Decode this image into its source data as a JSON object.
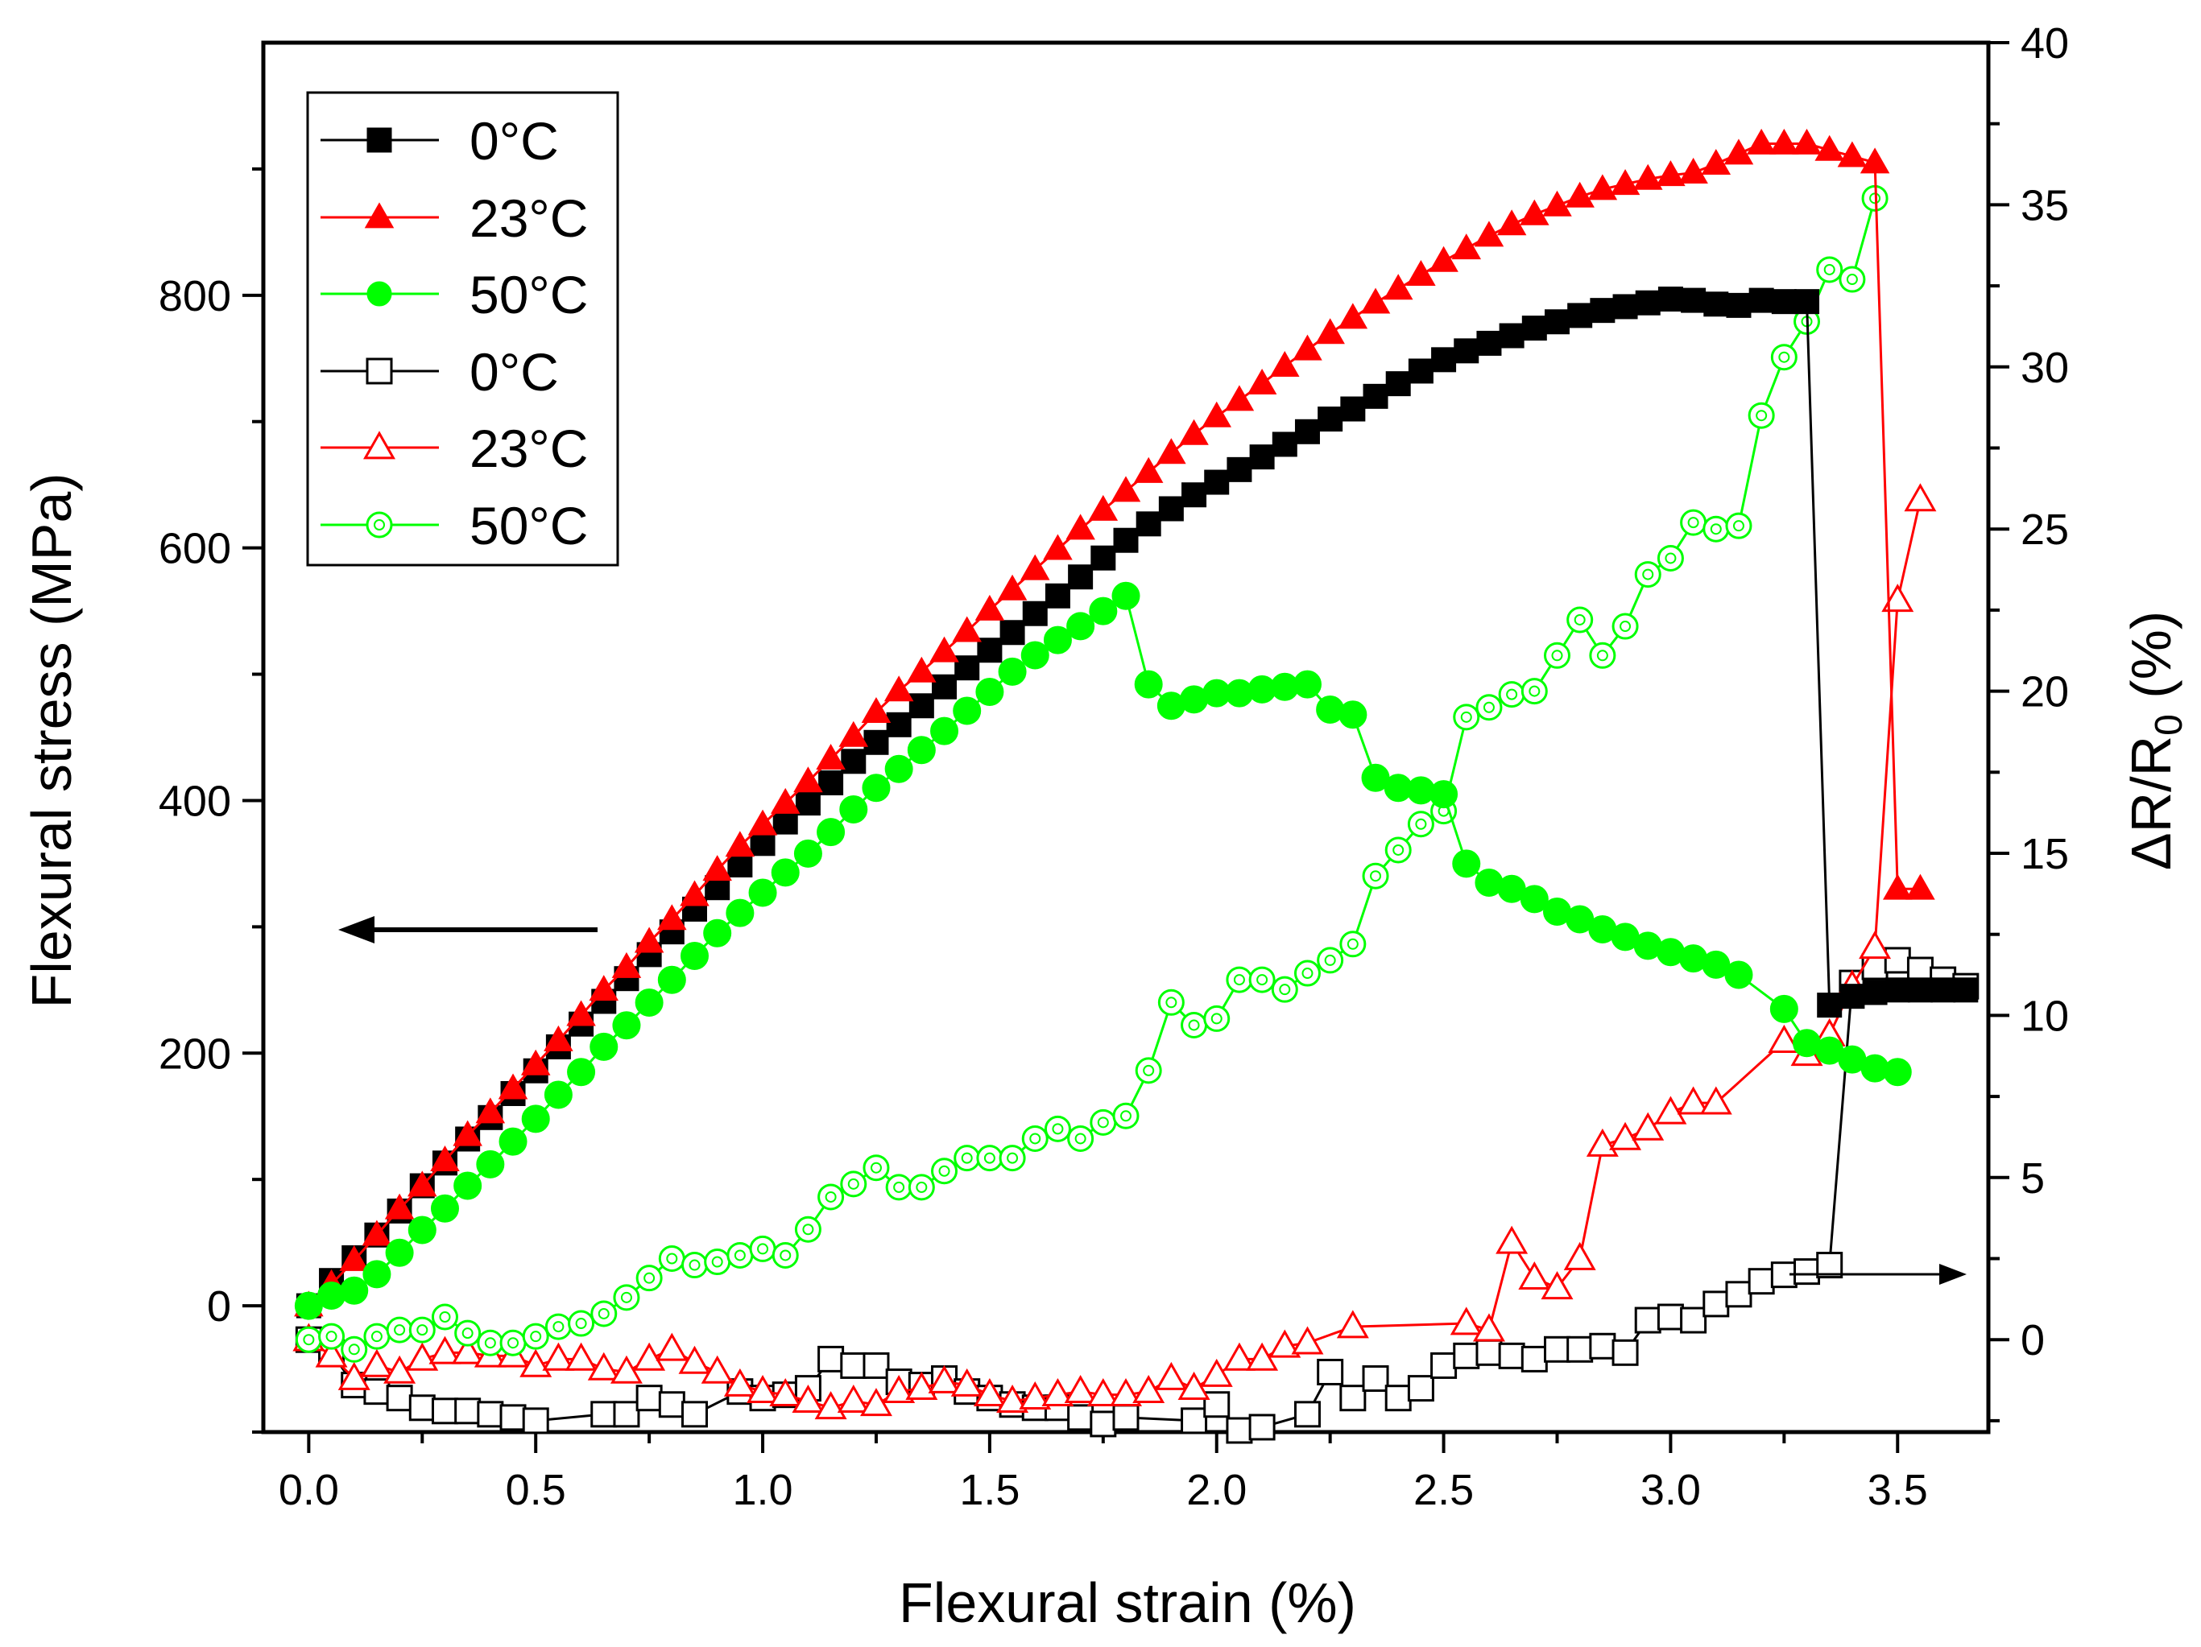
{
  "chart_data": {
    "type": "line",
    "xlabel": "Flexural strain (%)",
    "ylabel": "Flexural stress (MPa)",
    "y2label_main": "ΔR/R",
    "y2label_sub": "0",
    "y2label_end": " (%)",
    "xlim": [
      -0.1,
      3.7
    ],
    "ylim": [
      -100,
      1000
    ],
    "y2lim": [
      -2.85,
      40
    ],
    "x_ticks": [
      0.0,
      0.5,
      1.0,
      1.5,
      2.0,
      2.5,
      3.0,
      3.5
    ],
    "x_tick_labels": [
      "0.0",
      "0.5",
      "1.0",
      "1.5",
      "2.0",
      "2.5",
      "3.0",
      "3.5"
    ],
    "y_ticks": [
      0,
      200,
      400,
      600,
      800
    ],
    "y_tick_labels": [
      "0",
      "200",
      "400",
      "600",
      "800"
    ],
    "y2_ticks": [
      0,
      5,
      10,
      15,
      20,
      25,
      30,
      35,
      40
    ],
    "y2_tick_labels": [
      "0",
      "5",
      "10",
      "15",
      "20",
      "25",
      "30",
      "35",
      "40"
    ],
    "legend_position": "top-left",
    "series": [
      {
        "name": "0°C",
        "axis": "left",
        "marker": "square",
        "filled": true,
        "color": "#000000",
        "x": [
          0.0,
          0.05,
          0.1,
          0.15,
          0.2,
          0.25,
          0.3,
          0.35,
          0.4,
          0.45,
          0.5,
          0.55,
          0.6,
          0.65,
          0.7,
          0.75,
          0.8,
          0.85,
          0.9,
          0.95,
          1.0,
          1.05,
          1.1,
          1.15,
          1.2,
          1.25,
          1.3,
          1.35,
          1.4,
          1.45,
          1.5,
          1.55,
          1.6,
          1.65,
          1.7,
          1.75,
          1.8,
          1.85,
          1.9,
          1.95,
          2.0,
          2.05,
          2.1,
          2.15,
          2.2,
          2.25,
          2.3,
          2.35,
          2.4,
          2.45,
          2.5,
          2.55,
          2.6,
          2.65,
          2.7,
          2.75,
          2.8,
          2.85,
          2.9,
          2.95,
          3.0,
          3.05,
          3.1,
          3.15,
          3.2,
          3.25,
          3.3,
          3.35,
          3.4,
          3.45,
          3.5,
          3.55,
          3.6,
          3.65
        ],
        "y": [
          0,
          20,
          38,
          56,
          75,
          95,
          113,
          132,
          149,
          168,
          186,
          205,
          223,
          241,
          259,
          278,
          296,
          314,
          331,
          349,
          366,
          383,
          398,
          414,
          431,
          446,
          460,
          475,
          490,
          505,
          519,
          533,
          548,
          562,
          577,
          592,
          606,
          619,
          631,
          642,
          652,
          662,
          672,
          682,
          692,
          702,
          710,
          720,
          730,
          740,
          749,
          756,
          762,
          768,
          774,
          779,
          784,
          788,
          791,
          794,
          797,
          796,
          793,
          792,
          796,
          795,
          795,
          238,
          245,
          248,
          250,
          250,
          250,
          250
        ]
      },
      {
        "name": "23°C",
        "axis": "left",
        "marker": "triangle",
        "filled": true,
        "color": "#ff0000",
        "x": [
          0.0,
          0.05,
          0.1,
          0.15,
          0.2,
          0.25,
          0.3,
          0.35,
          0.4,
          0.45,
          0.5,
          0.55,
          0.6,
          0.65,
          0.7,
          0.75,
          0.8,
          0.85,
          0.9,
          0.95,
          1.0,
          1.05,
          1.1,
          1.15,
          1.2,
          1.25,
          1.3,
          1.35,
          1.4,
          1.45,
          1.5,
          1.55,
          1.6,
          1.65,
          1.7,
          1.75,
          1.8,
          1.85,
          1.9,
          1.95,
          2.0,
          2.05,
          2.1,
          2.15,
          2.2,
          2.25,
          2.3,
          2.35,
          2.4,
          2.45,
          2.5,
          2.55,
          2.6,
          2.65,
          2.7,
          2.75,
          2.8,
          2.85,
          2.9,
          2.95,
          3.0,
          3.05,
          3.1,
          3.15,
          3.2,
          3.25,
          3.3,
          3.35,
          3.4,
          3.45,
          3.5,
          3.55
        ],
        "y": [
          0,
          17,
          36,
          56,
          77,
          95,
          115,
          135,
          153,
          172,
          191,
          210,
          230,
          250,
          268,
          288,
          306,
          325,
          345,
          364,
          381,
          398,
          415,
          433,
          451,
          470,
          487,
          502,
          518,
          534,
          551,
          567,
          583,
          599,
          615,
          630,
          645,
          660,
          675,
          690,
          704,
          717,
          730,
          744,
          757,
          770,
          782,
          794,
          805,
          816,
          827,
          837,
          847,
          856,
          864,
          871,
          878,
          884,
          888,
          892,
          895,
          897,
          904,
          912,
          920,
          920,
          920,
          915,
          910,
          905,
          330,
          330
        ]
      },
      {
        "name": "50°C",
        "axis": "left",
        "marker": "circle",
        "filled": true,
        "color": "#00ff00",
        "x": [
          0.0,
          0.05,
          0.1,
          0.15,
          0.2,
          0.25,
          0.3,
          0.35,
          0.4,
          0.45,
          0.5,
          0.55,
          0.6,
          0.65,
          0.7,
          0.75,
          0.8,
          0.85,
          0.9,
          0.95,
          1.0,
          1.05,
          1.1,
          1.15,
          1.2,
          1.25,
          1.3,
          1.35,
          1.4,
          1.45,
          1.5,
          1.55,
          1.6,
          1.65,
          1.7,
          1.75,
          1.8,
          1.85,
          1.9,
          1.95,
          2.0,
          2.05,
          2.1,
          2.15,
          2.2,
          2.25,
          2.3,
          2.35,
          2.4,
          2.45,
          2.5,
          2.55,
          2.6,
          2.65,
          2.7,
          2.75,
          2.8,
          2.85,
          2.9,
          2.95,
          3.0,
          3.05,
          3.1,
          3.15,
          3.25,
          3.3,
          3.35,
          3.4,
          3.45,
          3.5
        ],
        "y": [
          0,
          8,
          12,
          25,
          42,
          60,
          77,
          95,
          112,
          130,
          148,
          167,
          185,
          205,
          222,
          240,
          258,
          277,
          295,
          311,
          327,
          343,
          358,
          375,
          393,
          410,
          425,
          440,
          455,
          471,
          486,
          502,
          515,
          527,
          538,
          550,
          562,
          492,
          475,
          480,
          485,
          485,
          488,
          490,
          492,
          472,
          468,
          418,
          410,
          408,
          405,
          350,
          335,
          330,
          322,
          312,
          306,
          298,
          292,
          285,
          280,
          275,
          270,
          262,
          235,
          208,
          202,
          195,
          188,
          185
        ]
      },
      {
        "name": "0°C",
        "axis": "right",
        "marker": "square",
        "filled": false,
        "color": "#000000",
        "x": [
          0.0,
          0.05,
          0.1,
          0.15,
          0.2,
          0.25,
          0.3,
          0.35,
          0.4,
          0.45,
          0.5,
          0.65,
          0.7,
          0.75,
          0.8,
          0.85,
          0.95,
          1.0,
          1.05,
          1.1,
          1.15,
          1.2,
          1.25,
          1.3,
          1.35,
          1.4,
          1.45,
          1.5,
          1.55,
          1.6,
          1.65,
          1.7,
          1.75,
          1.8,
          1.95,
          2.0,
          2.05,
          2.1,
          2.2,
          2.25,
          2.3,
          2.35,
          2.4,
          2.45,
          2.5,
          2.55,
          2.6,
          2.65,
          2.7,
          2.75,
          2.8,
          2.85,
          2.9,
          2.95,
          3.0,
          3.05,
          3.1,
          3.15,
          3.2,
          3.25,
          3.3,
          3.35,
          3.4,
          3.45,
          3.5,
          3.55,
          3.6,
          3.65
        ],
        "y": [
          0.0,
          -0.4,
          -1.4,
          -1.6,
          -1.8,
          -2.1,
          -2.2,
          -2.2,
          -2.3,
          -2.4,
          -2.5,
          -2.3,
          -2.3,
          -1.8,
          -2.0,
          -2.3,
          -1.6,
          -1.8,
          -1.7,
          -1.5,
          -0.6,
          -0.8,
          -0.8,
          -1.3,
          -1.4,
          -1.2,
          -1.6,
          -1.8,
          -2.0,
          -2.1,
          -2.1,
          -2.4,
          -2.6,
          -2.4,
          -2.5,
          -2.0,
          -2.8,
          -2.7,
          -2.3,
          -1.0,
          -1.8,
          -1.2,
          -1.8,
          -1.5,
          -0.8,
          -0.5,
          -0.4,
          -0.5,
          -0.6,
          -0.3,
          -0.3,
          -0.2,
          -0.4,
          0.6,
          0.7,
          0.6,
          1.1,
          1.4,
          1.8,
          2.0,
          2.1,
          2.3,
          11.0,
          11.5,
          11.7,
          11.4,
          11.1,
          10.9
        ]
      },
      {
        "name": "23°C",
        "axis": "right",
        "marker": "triangle",
        "filled": false,
        "color": "#ff0000",
        "x": [
          0.0,
          0.05,
          0.1,
          0.15,
          0.2,
          0.25,
          0.3,
          0.35,
          0.4,
          0.45,
          0.5,
          0.55,
          0.6,
          0.65,
          0.7,
          0.75,
          0.8,
          0.85,
          0.9,
          0.95,
          1.0,
          1.05,
          1.1,
          1.15,
          1.2,
          1.25,
          1.3,
          1.35,
          1.4,
          1.45,
          1.5,
          1.55,
          1.6,
          1.65,
          1.7,
          1.75,
          1.8,
          1.85,
          1.9,
          1.95,
          2.0,
          2.05,
          2.1,
          2.15,
          2.2,
          2.3,
          2.55,
          2.6,
          2.65,
          2.7,
          2.75,
          2.8,
          2.85,
          2.9,
          2.95,
          3.0,
          3.05,
          3.1,
          3.25,
          3.3,
          3.35,
          3.4,
          3.45,
          3.5,
          3.55
        ],
        "y": [
          0.0,
          -0.5,
          -1.2,
          -0.8,
          -1.0,
          -0.6,
          -0.4,
          -0.4,
          -0.5,
          -0.5,
          -0.8,
          -0.6,
          -0.6,
          -0.9,
          -1.0,
          -0.6,
          -0.3,
          -0.7,
          -1.0,
          -1.4,
          -1.6,
          -1.7,
          -1.9,
          -2.1,
          -1.9,
          -2.0,
          -1.6,
          -1.5,
          -1.3,
          -1.4,
          -1.7,
          -1.9,
          -1.8,
          -1.7,
          -1.6,
          -1.7,
          -1.7,
          -1.6,
          -1.2,
          -1.5,
          -1.1,
          -0.6,
          -0.6,
          -0.2,
          -0.1,
          0.4,
          0.5,
          0.3,
          3.0,
          1.9,
          1.6,
          2.5,
          6.0,
          6.2,
          6.5,
          7.0,
          7.3,
          7.3,
          9.2,
          8.8,
          9.4,
          10.9,
          12.1,
          22.8,
          25.9
        ]
      },
      {
        "name": "50°C",
        "axis": "right",
        "marker": "circle",
        "filled": false,
        "color": "#00ff00",
        "x": [
          0.0,
          0.05,
          0.1,
          0.15,
          0.2,
          0.25,
          0.3,
          0.35,
          0.4,
          0.45,
          0.5,
          0.55,
          0.6,
          0.65,
          0.7,
          0.75,
          0.8,
          0.85,
          0.9,
          0.95,
          1.0,
          1.05,
          1.1,
          1.15,
          1.2,
          1.25,
          1.3,
          1.35,
          1.4,
          1.45,
          1.5,
          1.55,
          1.6,
          1.65,
          1.7,
          1.75,
          1.8,
          1.85,
          1.9,
          1.95,
          2.0,
          2.05,
          2.1,
          2.15,
          2.2,
          2.25,
          2.3,
          2.35,
          2.4,
          2.45,
          2.5,
          2.55,
          2.6,
          2.65,
          2.7,
          2.75,
          2.8,
          2.85,
          2.9,
          2.95,
          3.0,
          3.05,
          3.1,
          3.15,
          3.2,
          3.25,
          3.3,
          3.35,
          3.4,
          3.45
        ],
        "y": [
          0.0,
          0.1,
          -0.3,
          0.1,
          0.3,
          0.3,
          0.7,
          0.2,
          -0.1,
          -0.1,
          0.1,
          0.4,
          0.5,
          0.8,
          1.3,
          1.9,
          2.5,
          2.3,
          2.4,
          2.6,
          2.8,
          2.6,
          3.4,
          4.4,
          4.8,
          5.3,
          4.7,
          4.7,
          5.2,
          5.6,
          5.6,
          5.6,
          6.2,
          6.5,
          6.2,
          6.7,
          6.9,
          8.3,
          10.4,
          9.7,
          9.9,
          11.1,
          11.1,
          10.8,
          11.3,
          11.7,
          12.2,
          14.3,
          15.1,
          15.9,
          16.3,
          19.2,
          19.5,
          19.9,
          20.0,
          21.1,
          22.2,
          21.1,
          22.0,
          23.6,
          24.1,
          25.2,
          25.0,
          25.1,
          28.5,
          30.3,
          31.4,
          33.0,
          32.7,
          35.2
        ]
      }
    ],
    "annotations": [
      {
        "type": "arrow",
        "direction": "left",
        "indicates": "left axis"
      },
      {
        "type": "arrow",
        "direction": "right",
        "indicates": "right axis"
      }
    ]
  }
}
